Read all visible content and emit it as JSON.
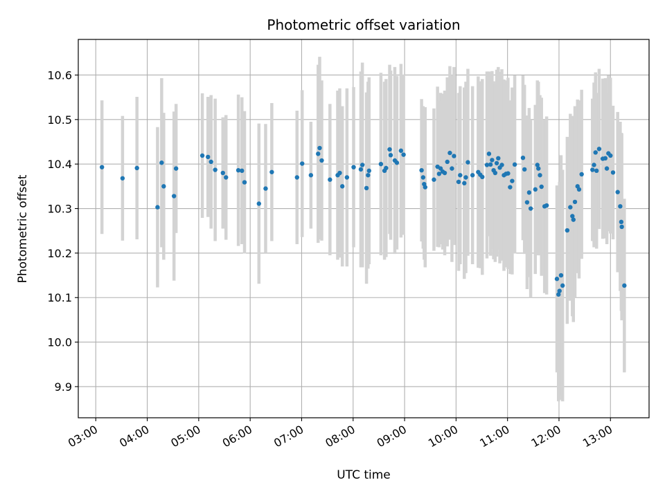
{
  "chart_data": {
    "type": "scatter",
    "title": "Photometric offset variation",
    "xlabel": "UTC time",
    "ylabel": "Photometric offset",
    "grid": true,
    "xlim": [
      2.66,
      13.75
    ],
    "ylim": [
      9.83,
      10.68
    ],
    "x_ticks": [
      {
        "value": 3,
        "label": "03:00"
      },
      {
        "value": 4,
        "label": "04:00"
      },
      {
        "value": 5,
        "label": "05:00"
      },
      {
        "value": 6,
        "label": "06:00"
      },
      {
        "value": 7,
        "label": "07:00"
      },
      {
        "value": 8,
        "label": "08:00"
      },
      {
        "value": 9,
        "label": "09:00"
      },
      {
        "value": 10,
        "label": "10:00"
      },
      {
        "value": 11,
        "label": "11:00"
      },
      {
        "value": 12,
        "label": "12:00"
      },
      {
        "value": 13,
        "label": "13:00"
      }
    ],
    "y_ticks": [
      {
        "value": 9.9,
        "label": "9.9"
      },
      {
        "value": 10.0,
        "label": "10.0"
      },
      {
        "value": 10.1,
        "label": "10.1"
      },
      {
        "value": 10.2,
        "label": "10.2"
      },
      {
        "value": 10.3,
        "label": "10.3"
      },
      {
        "value": 10.4,
        "label": "10.4"
      },
      {
        "value": 10.5,
        "label": "10.5"
      },
      {
        "value": 10.6,
        "label": "10.6"
      }
    ],
    "point_color": "#1f77b4",
    "errorbar_color": "#d3d3d3",
    "points": [
      [
        3.12,
        10.393,
        0.15
      ],
      [
        3.52,
        10.368,
        0.14
      ],
      [
        3.8,
        10.391,
        0.16
      ],
      [
        4.2,
        10.303,
        0.18
      ],
      [
        4.28,
        10.403,
        0.19
      ],
      [
        4.32,
        10.35,
        0.165
      ],
      [
        4.52,
        10.328,
        0.19
      ],
      [
        4.56,
        10.39,
        0.145
      ],
      [
        5.07,
        10.419,
        0.14
      ],
      [
        5.18,
        10.416,
        0.135
      ],
      [
        5.24,
        10.405,
        0.15
      ],
      [
        5.32,
        10.387,
        0.16
      ],
      [
        5.47,
        10.38,
        0.125
      ],
      [
        5.53,
        10.37,
        0.14
      ],
      [
        5.77,
        10.386,
        0.17
      ],
      [
        5.84,
        10.385,
        0.165
      ],
      [
        5.89,
        10.359,
        0.16
      ],
      [
        6.17,
        10.311,
        0.18
      ],
      [
        6.3,
        10.345,
        0.145
      ],
      [
        6.42,
        10.382,
        0.155
      ],
      [
        6.91,
        10.37,
        0.15
      ],
      [
        7.01,
        10.401,
        0.165
      ],
      [
        7.18,
        10.375,
        0.12
      ],
      [
        7.32,
        10.423,
        0.2
      ],
      [
        7.35,
        10.436,
        0.205
      ],
      [
        7.39,
        10.408,
        0.18
      ],
      [
        7.55,
        10.365,
        0.17
      ],
      [
        7.7,
        10.375,
        0.19
      ],
      [
        7.74,
        10.38,
        0.19
      ],
      [
        7.79,
        10.35,
        0.18
      ],
      [
        7.88,
        10.37,
        0.2
      ],
      [
        8.01,
        10.393,
        0.18
      ],
      [
        8.15,
        10.388,
        0.22
      ],
      [
        8.18,
        10.398,
        0.23
      ],
      [
        8.26,
        10.346,
        0.215
      ],
      [
        8.29,
        10.375,
        0.21
      ],
      [
        8.31,
        10.385,
        0.21
      ],
      [
        8.54,
        10.4,
        0.205
      ],
      [
        8.61,
        10.385,
        0.2
      ],
      [
        8.64,
        10.391,
        0.2
      ],
      [
        8.71,
        10.433,
        0.19
      ],
      [
        8.73,
        10.42,
        0.19
      ],
      [
        8.81,
        10.408,
        0.21
      ],
      [
        8.85,
        10.403,
        0.195
      ],
      [
        8.93,
        10.43,
        0.195
      ],
      [
        8.98,
        10.421,
        0.18
      ],
      [
        9.33,
        10.386,
        0.16
      ],
      [
        9.36,
        10.37,
        0.16
      ],
      [
        9.38,
        10.355,
        0.17
      ],
      [
        9.4,
        10.348,
        0.18
      ],
      [
        9.57,
        10.365,
        0.16
      ],
      [
        9.64,
        10.394,
        0.18
      ],
      [
        9.67,
        10.378,
        0.165
      ],
      [
        9.7,
        10.39,
        0.17
      ],
      [
        9.74,
        10.383,
        0.175
      ],
      [
        9.78,
        10.38,
        0.185
      ],
      [
        9.83,
        10.405,
        0.19
      ],
      [
        9.88,
        10.425,
        0.195
      ],
      [
        9.92,
        10.39,
        0.21
      ],
      [
        9.96,
        10.418,
        0.2
      ],
      [
        10.05,
        10.36,
        0.2
      ],
      [
        10.08,
        10.375,
        0.2
      ],
      [
        10.16,
        10.357,
        0.215
      ],
      [
        10.19,
        10.37,
        0.215
      ],
      [
        10.23,
        10.404,
        0.21
      ],
      [
        10.32,
        10.375,
        0.2
      ],
      [
        10.43,
        10.382,
        0.215
      ],
      [
        10.47,
        10.376,
        0.21
      ],
      [
        10.51,
        10.371,
        0.22
      ],
      [
        10.6,
        10.398,
        0.21
      ],
      [
        10.64,
        10.423,
        0.185
      ],
      [
        10.67,
        10.399,
        0.205
      ],
      [
        10.7,
        10.409,
        0.2
      ],
      [
        10.73,
        10.386,
        0.2
      ],
      [
        10.76,
        10.38,
        0.2
      ],
      [
        10.79,
        10.402,
        0.21
      ],
      [
        10.82,
        10.413,
        0.205
      ],
      [
        10.85,
        10.392,
        0.215
      ],
      [
        10.89,
        10.398,
        0.215
      ],
      [
        10.93,
        10.375,
        0.215
      ],
      [
        10.97,
        10.378,
        0.21
      ],
      [
        11.01,
        10.379,
        0.215
      ],
      [
        11.05,
        10.348,
        0.195
      ],
      [
        11.09,
        10.362,
        0.21
      ],
      [
        11.14,
        10.399,
        0.2
      ],
      [
        11.3,
        10.414,
        0.185
      ],
      [
        11.33,
        10.388,
        0.19
      ],
      [
        11.38,
        10.314,
        0.195
      ],
      [
        11.42,
        10.336,
        0.19
      ],
      [
        11.45,
        10.3,
        0.2
      ],
      [
        11.54,
        10.343,
        0.19
      ],
      [
        11.58,
        10.398,
        0.19
      ],
      [
        11.6,
        10.39,
        0.195
      ],
      [
        11.63,
        10.375,
        0.18
      ],
      [
        11.66,
        10.349,
        0.2
      ],
      [
        11.72,
        10.305,
        0.195
      ],
      [
        11.76,
        10.307,
        0.2
      ],
      [
        11.96,
        10.142,
        0.21
      ],
      [
        11.99,
        10.107,
        0.24
      ],
      [
        12.01,
        10.115,
        0.245
      ],
      [
        12.04,
        10.15,
        0.27
      ],
      [
        12.07,
        10.127,
        0.26
      ],
      [
        12.16,
        10.251,
        0.21
      ],
      [
        12.22,
        10.303,
        0.21
      ],
      [
        12.26,
        10.283,
        0.225
      ],
      [
        12.28,
        10.275,
        0.23
      ],
      [
        12.31,
        10.315,
        0.215
      ],
      [
        12.36,
        10.35,
        0.195
      ],
      [
        12.39,
        10.343,
        0.2
      ],
      [
        12.44,
        10.377,
        0.19
      ],
      [
        12.65,
        10.387,
        0.16
      ],
      [
        12.68,
        10.398,
        0.185
      ],
      [
        12.71,
        10.426,
        0.18
      ],
      [
        12.73,
        10.385,
        0.175
      ],
      [
        12.78,
        10.434,
        0.18
      ],
      [
        12.85,
        10.412,
        0.18
      ],
      [
        12.9,
        10.413,
        0.18
      ],
      [
        12.93,
        10.39,
        0.17
      ],
      [
        12.96,
        10.424,
        0.175
      ],
      [
        13.0,
        10.419,
        0.175
      ],
      [
        13.05,
        10.381,
        0.15
      ],
      [
        13.14,
        10.337,
        0.18
      ],
      [
        13.19,
        10.305,
        0.19
      ],
      [
        13.21,
        10.27,
        0.2
      ],
      [
        13.22,
        10.259,
        0.21
      ],
      [
        13.27,
        10.127,
        0.195
      ]
    ]
  }
}
